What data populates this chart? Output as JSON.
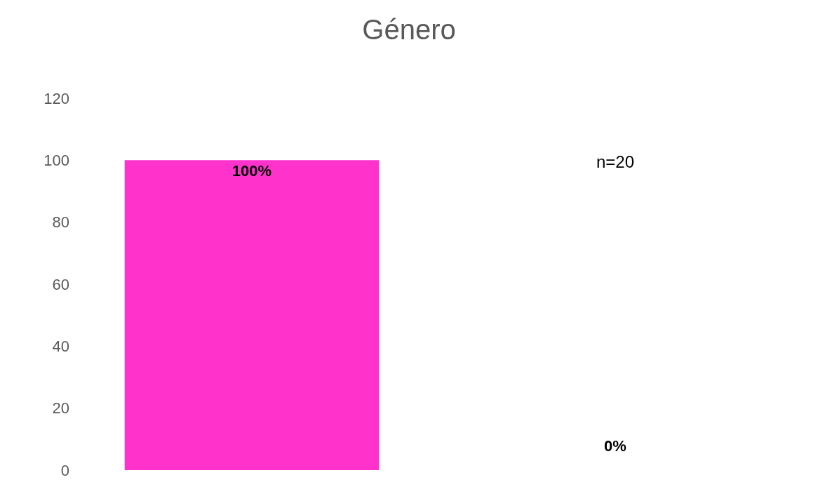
{
  "chart_data": {
    "type": "bar",
    "title": "Género",
    "categories": [
      null
    ],
    "values": [
      100
    ],
    "value_labels": [
      "100%"
    ],
    "color": "#ff33cc",
    "ylim": [
      0,
      120
    ],
    "yticks": [
      0,
      20,
      40,
      60,
      80,
      100,
      120
    ],
    "annotations": [
      "n=20",
      "0%"
    ],
    "tick_labels": "y"
  }
}
